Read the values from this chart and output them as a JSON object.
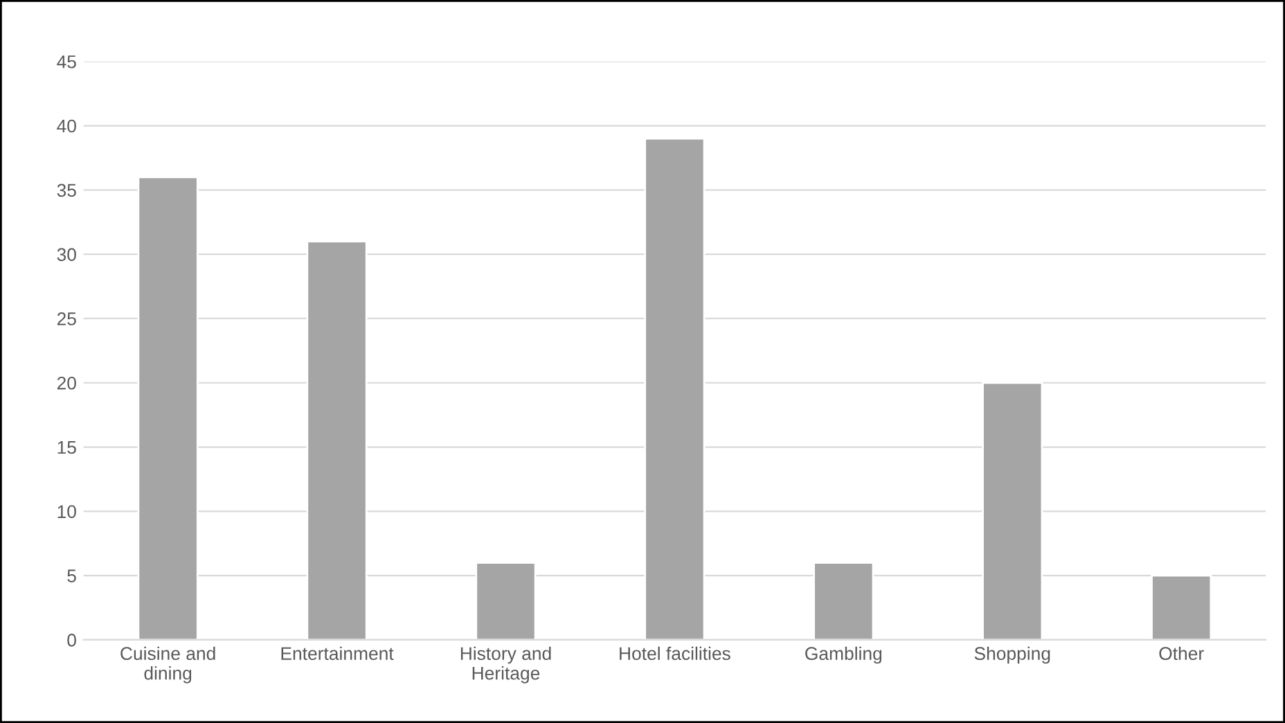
{
  "chart_data": {
    "type": "bar",
    "categories": [
      "Cuisine and\ndining",
      "Entertainment",
      "History and\nHeritage",
      "Hotel facilities",
      "Gambling",
      "Shopping",
      "Other"
    ],
    "values": [
      36,
      31,
      6,
      39,
      6,
      20,
      5
    ],
    "color": "#a5a5a5",
    "ylim": [
      0,
      45
    ],
    "yticks": [
      0,
      5,
      10,
      15,
      20,
      25,
      30,
      35,
      40,
      45
    ],
    "grid": "y"
  }
}
